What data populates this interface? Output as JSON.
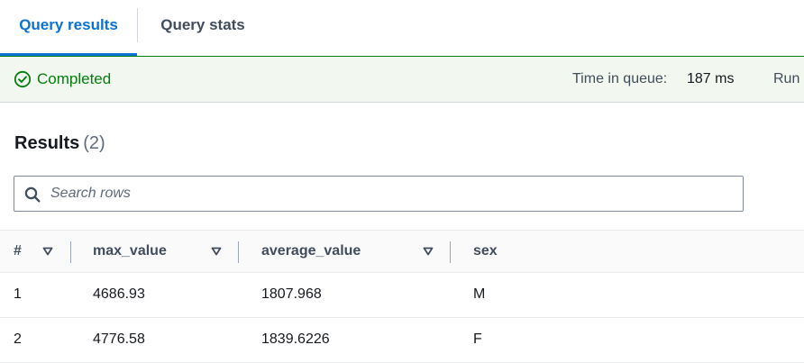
{
  "tabs": {
    "results_label": "Query results",
    "stats_label": "Query stats"
  },
  "status": {
    "state": "Completed",
    "queue_label": "Time in queue:",
    "queue_value": "187 ms",
    "run_label": "Run",
    "success_color": "#037f0c",
    "icon": "check-circle-icon"
  },
  "results": {
    "title": "Results",
    "count": "(2)"
  },
  "search": {
    "placeholder": "Search rows",
    "value": "",
    "icon": "search-icon"
  },
  "table": {
    "columns": [
      "#",
      "max_value",
      "average_value",
      "sex"
    ],
    "rows": [
      [
        "1",
        "4686.93",
        "1807.968",
        "M"
      ],
      [
        "2",
        "4776.58",
        "1839.6226",
        "F"
      ]
    ],
    "sort_icon": "sort-down-icon"
  },
  "colors": {
    "accent": "#0972d3",
    "success": "#037f0c"
  }
}
